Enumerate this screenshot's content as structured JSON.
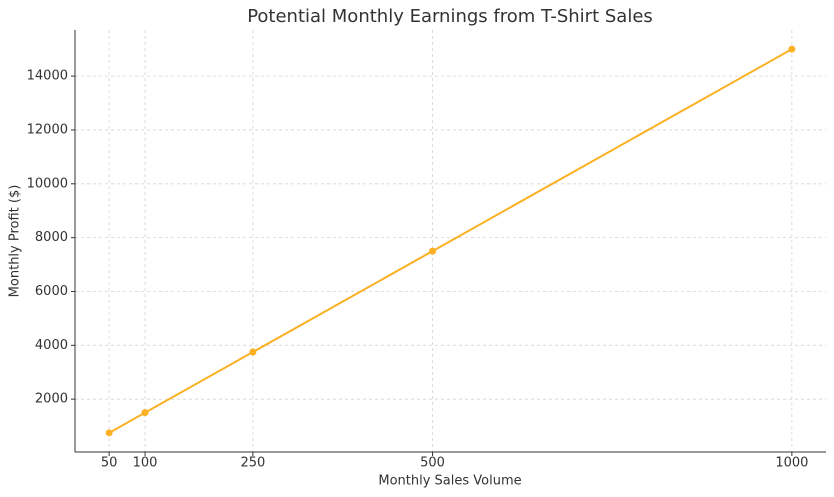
{
  "chart_data": {
    "type": "line",
    "title": "Potential Monthly Earnings from T-Shirt Sales",
    "xlabel": "Monthly Sales Volume",
    "ylabel": "Monthly Profit ($)",
    "x": [
      50,
      100,
      250,
      500,
      1000
    ],
    "series": [
      {
        "color": "#fbb123",
        "values": [
          750,
          1500,
          3750,
          7500,
          15000
        ]
      }
    ],
    "xlim": [
      2.5,
      1047.5
    ],
    "ylim": [
      37.5,
      15712.5
    ],
    "xticks": [
      50,
      100,
      250,
      500,
      1000
    ],
    "yticks": [
      2000,
      4000,
      6000,
      8000,
      10000,
      12000,
      14000
    ],
    "grid": true,
    "markers": true
  }
}
